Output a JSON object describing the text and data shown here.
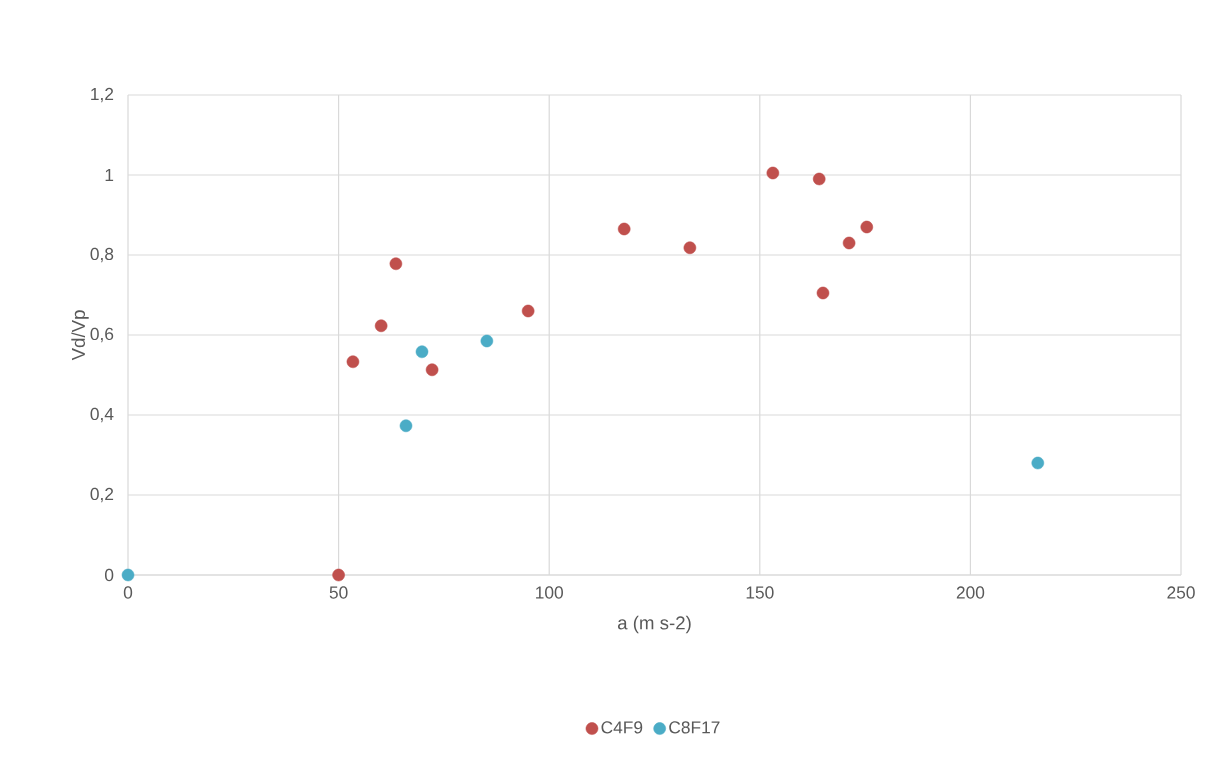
{
  "chart_data": {
    "type": "scatter",
    "xlabel": "a (m s-2)",
    "ylabel": "Vd/Vp",
    "xlim": [
      0,
      250
    ],
    "ylim": [
      0,
      1.2
    ],
    "xticks": [
      0,
      50,
      100,
      150,
      200,
      250
    ],
    "yticks": [
      0,
      {
        "value": 0.2,
        "label": "0,2"
      },
      {
        "value": 0.4,
        "label": "0,4"
      },
      {
        "value": 0.6,
        "label": "0,6"
      },
      {
        "value": 0.8,
        "label": "0,8"
      },
      1,
      {
        "value": 1.2,
        "label": "1,2"
      }
    ],
    "grid": true,
    "legend": "bottom",
    "marker": "circle",
    "series": [
      {
        "name": "C4F9",
        "color": "#c0504d",
        "x": [
          50,
          53.4,
          60.1,
          63.6,
          72.2,
          95,
          117.8,
          133.4,
          153.1,
          164.1,
          165,
          171.2,
          175.4
        ],
        "values": [
          0,
          0.533,
          0.623,
          0.778,
          0.513,
          0.66,
          0.865,
          0.818,
          1.005,
          0.99,
          0.705,
          0.83,
          0.87
        ]
      },
      {
        "name": "C8F17",
        "color": "#4bacc6",
        "x": [
          0,
          66,
          69.8,
          85.2,
          216
        ],
        "values": [
          0,
          0.373,
          0.558,
          0.585,
          0.28
        ]
      }
    ]
  }
}
